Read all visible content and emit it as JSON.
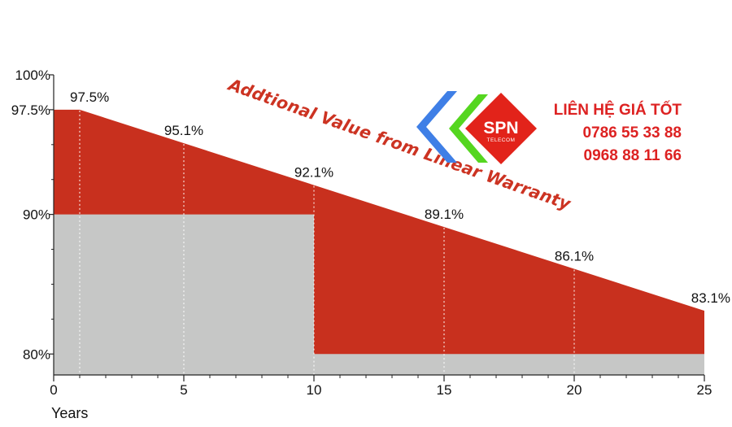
{
  "chart_data": {
    "type": "area",
    "title": "",
    "xlabel": "Years",
    "ylabel": "",
    "xlim": [
      0,
      25
    ],
    "ylim": [
      78.5,
      100
    ],
    "x_ticks": [
      0,
      5,
      10,
      15,
      20,
      25
    ],
    "y_ticks": [
      {
        "value": 100,
        "label": "100%"
      },
      {
        "value": 97.5,
        "label": "97.5%"
      },
      {
        "value": 90,
        "label": "90%"
      },
      {
        "value": 80,
        "label": "80%"
      }
    ],
    "linear_warranty": {
      "x": [
        0,
        1,
        25
      ],
      "y": [
        97.5,
        97.5,
        83.1
      ]
    },
    "step_warranty": {
      "segments": [
        {
          "x_start": 0,
          "x_end": 10,
          "y": 90
        },
        {
          "x_start": 10,
          "x_end": 25,
          "y": 80
        }
      ]
    },
    "data_labels": [
      {
        "x": 1,
        "y": 97.5,
        "label": "97.5%"
      },
      {
        "x": 5,
        "y": 95.1,
        "label": "95.1%"
      },
      {
        "x": 10,
        "y": 92.1,
        "label": "92.1%"
      },
      {
        "x": 15,
        "y": 89.1,
        "label": "89.1%"
      },
      {
        "x": 20,
        "y": 86.1,
        "label": "86.1%"
      },
      {
        "x": 25,
        "y": 83.1,
        "label": "83.1%"
      }
    ],
    "annotation": "Addtional Value from Linear Warranty",
    "colors": {
      "value_area": "#c8301e",
      "base_area": "#c6c7c6",
      "axis": "#222222"
    }
  },
  "contact": {
    "heading": "LIÊN HỆ GIÁ TỐT",
    "phone_1": "0786 55 33 88",
    "phone_2": "0968 88 11 66"
  },
  "logo": {
    "brand": "SPN",
    "sub": "TELECOM",
    "colors": {
      "blue": "#3f7fe6",
      "green": "#55d620",
      "red": "#e2231a"
    }
  }
}
